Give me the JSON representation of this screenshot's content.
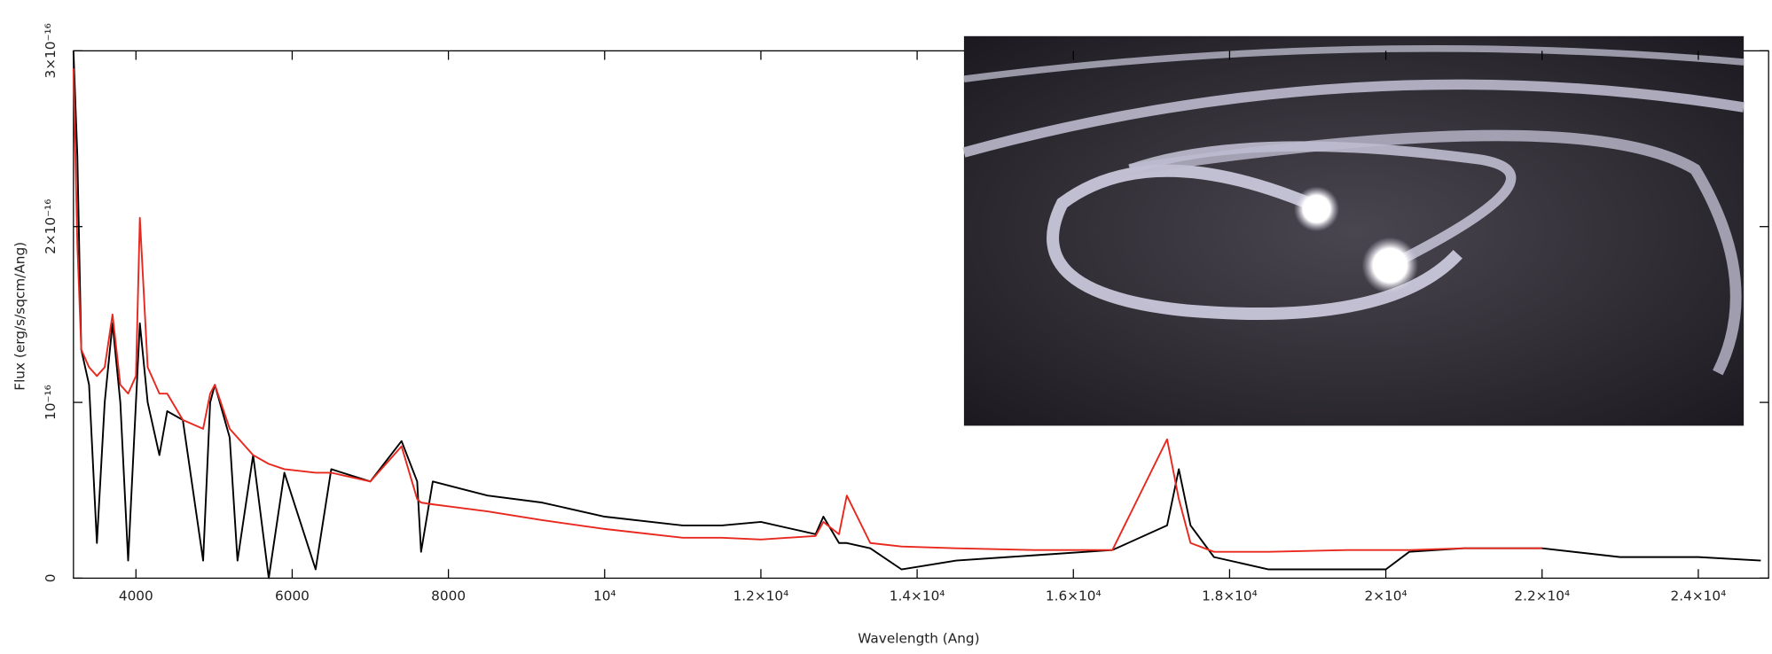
{
  "chart_data": {
    "type": "line",
    "x_label": "Wavelength (Ang)",
    "y_label": "Flux (erg/s/sqcm/Ang)",
    "x": [
      3200,
      3250,
      3300,
      3400,
      3500,
      3600,
      3700,
      3800,
      3900,
      4000,
      4050,
      4150,
      4300,
      4400,
      4600,
      4860,
      4950,
      5010,
      5200,
      5300,
      5500,
      5700,
      5900,
      6300,
      6500,
      7000,
      7400,
      7600,
      7650,
      7800,
      8500,
      9200,
      10000,
      11000,
      11500,
      12000,
      12700,
      12800,
      13000,
      13100,
      13400,
      13800,
      14500,
      15500,
      16500,
      17200,
      17350,
      17500,
      17800,
      18500,
      19500,
      20000,
      20300,
      21000,
      22000,
      23000,
      24000,
      24800
    ],
    "series": [
      {
        "color": "#000000",
        "values": [
          3e-16,
          2.4e-16,
          1.3e-16,
          1.1e-16,
          2e-17,
          1e-16,
          1.45e-16,
          1e-16,
          1e-17,
          1e-16,
          1.45e-16,
          1e-16,
          7e-17,
          9.5e-17,
          9e-17,
          1e-17,
          1e-16,
          1.1e-16,
          8e-17,
          1e-17,
          7e-17,
          0.0,
          6e-17,
          5e-18,
          6.2e-17,
          5.5e-17,
          7.8e-17,
          5.5e-17,
          1.5e-17,
          5.5e-17,
          4.7e-17,
          4.3e-17,
          3.5e-17,
          3e-17,
          3e-17,
          3.2e-17,
          2.5e-17,
          3.5e-17,
          2e-17,
          2e-17,
          1.7e-17,
          5e-18,
          1e-17,
          1.3e-17,
          1.6e-17,
          3e-17,
          6.2e-17,
          3e-17,
          1.2e-17,
          5e-18,
          5e-18,
          5e-18,
          1.5e-17,
          1.7e-17,
          1.7e-17,
          1.2e-17,
          1.2e-17,
          1e-17
        ]
      },
      {
        "color": "#e8281e",
        "values": [
          2.9e-16,
          1.9e-16,
          1.3e-16,
          1.2e-16,
          1.15e-16,
          1.2e-16,
          1.5e-16,
          1.1e-16,
          1.05e-16,
          1.15e-16,
          2.05e-16,
          1.2e-16,
          1.05e-16,
          1.05e-16,
          9e-17,
          8.5e-17,
          1.05e-16,
          1.1e-16,
          8.5e-17,
          8e-17,
          7e-17,
          6.5e-17,
          6.2e-17,
          6e-17,
          6e-17,
          5.5e-17,
          7.5e-17,
          4.5e-17,
          4.3e-17,
          4.2e-17,
          3.8e-17,
          3.3e-17,
          2.8e-17,
          2.3e-17,
          2.3e-17,
          2.2e-17,
          2.4e-17,
          3.2e-17,
          2.5e-17,
          4.7e-17,
          2e-17,
          1.8e-17,
          1.7e-17,
          1.6e-17,
          1.6e-17,
          7.9e-17,
          4.5e-17,
          2e-17,
          1.5e-17,
          1.5e-17,
          1.6e-17,
          1.6e-17,
          1.6e-17,
          1.7e-17,
          1.7e-17,
          null,
          null,
          null
        ]
      }
    ],
    "xlim": [
      3200,
      24900
    ],
    "ylim": [
      0,
      3e-16
    ],
    "xticks": [
      4000,
      6000,
      8000,
      {
        "value": 10000,
        "label": "10⁴"
      },
      {
        "value": 12000,
        "label": "1.2×10⁴"
      },
      {
        "value": 14000,
        "label": "1.4×10⁴"
      },
      {
        "value": 16000,
        "label": "1.6×10⁴"
      },
      {
        "value": 18000,
        "label": "1.8×10⁴"
      },
      {
        "value": 20000,
        "label": "2×10⁴"
      },
      {
        "value": 22000,
        "label": "2.2×10⁴"
      },
      {
        "value": 24000,
        "label": "2.4×10⁴"
      }
    ],
    "yticks": [
      0,
      {
        "value": 1e-16,
        "label": "10⁻¹⁶"
      },
      {
        "value": 2e-16,
        "label": "2×10⁻¹⁶"
      },
      {
        "value": 3e-16,
        "label": "3×10⁻¹⁶"
      }
    ]
  }
}
